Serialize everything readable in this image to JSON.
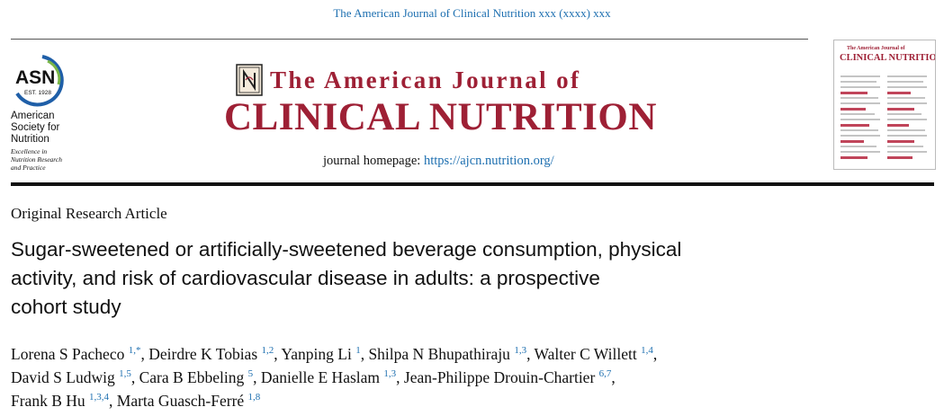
{
  "header": {
    "journal_reference": "The American Journal of Clinical Nutrition xxx (xxxx) xxx",
    "journal_title_line1": "The American Journal of",
    "journal_title_line2": "CLINICAL NUTRITION",
    "homepage_label": "journal homepage: ",
    "homepage_url": "https://ajcn.nutrition.org/"
  },
  "society": {
    "abbrev": "ASN",
    "established": "EST. 1928",
    "name_lines": [
      "American",
      "Society for",
      "Nutrition"
    ],
    "tagline_lines": [
      "Excellence in",
      "Nutrition Research",
      "and Practice"
    ]
  },
  "cover": {
    "title_line1": "The American Journal of",
    "title_line2": "CLINICAL NUTRITION"
  },
  "article": {
    "type": "Original Research Article",
    "title_lines": [
      "Sugar-sweetened or artificially-sweetened beverage consumption, physical",
      "activity, and risk of cardiovascular disease in adults: a prospective",
      "cohort study"
    ],
    "authors": [
      {
        "name": "Lorena S Pacheco",
        "aff": "1,*"
      },
      {
        "name": "Deirdre K Tobias",
        "aff": "1,2"
      },
      {
        "name": "Yanping Li",
        "aff": "1"
      },
      {
        "name": "Shilpa N Bhupathiraju",
        "aff": "1,3"
      },
      {
        "name": "Walter C Willett",
        "aff": "1,4"
      },
      {
        "name": "David S Ludwig",
        "aff": "1,5"
      },
      {
        "name": "Cara B Ebbeling",
        "aff": "5"
      },
      {
        "name": "Danielle E Haslam",
        "aff": "1,3"
      },
      {
        "name": "Jean-Philippe Drouin-Chartier",
        "aff": "6,7"
      },
      {
        "name": "Frank B Hu",
        "aff": "1,3,4"
      },
      {
        "name": "Marta Guasch-Ferré",
        "aff": "1,8"
      }
    ]
  },
  "colors": {
    "journal_red": "#9e2035",
    "link_blue": "#1d6fb0",
    "asn_blue": "#1f5fa8",
    "asn_green": "#7ab648"
  }
}
